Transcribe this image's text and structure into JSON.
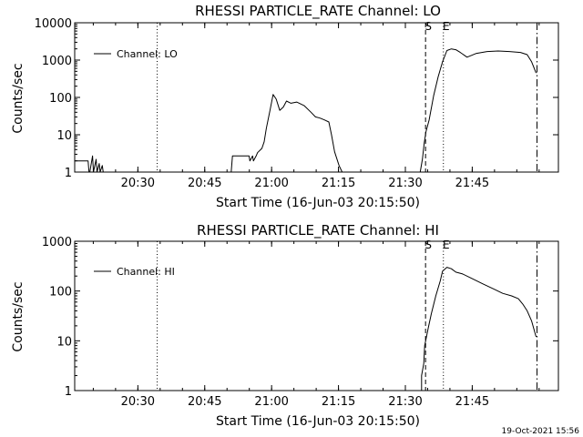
{
  "colors": {
    "background": "#ffffff",
    "foreground": "#000000"
  },
  "footer": {
    "stamp": "19-Oct-2021 15:56"
  },
  "chart_data": [
    {
      "type": "line",
      "title": "RHESSI PARTICLE_RATE Channel: LO",
      "xlabel": "Start Time (16-Jun-03 20:15:50)",
      "ylabel": "Counts/sec",
      "y_scale": "log",
      "x_units": "minutes since 20:15:50",
      "xlim": [
        0,
        108.5
      ],
      "ylim": [
        1,
        10000
      ],
      "x_ticks": [
        {
          "label": "20:30",
          "x": 14.17
        },
        {
          "label": "20:45",
          "x": 29.17
        },
        {
          "label": "21:00",
          "x": 44.17
        },
        {
          "label": "21:15",
          "x": 59.17
        },
        {
          "label": "21:30",
          "x": 74.17
        },
        {
          "label": "21:45",
          "x": 89.17
        }
      ],
      "y_ticks": [
        {
          "label": "1",
          "y": 1
        },
        {
          "label": "10",
          "y": 10
        },
        {
          "label": "100",
          "y": 100
        },
        {
          "label": "1000",
          "y": 1000
        },
        {
          "label": "10000",
          "y": 10000
        }
      ],
      "legend": {
        "position": "top-left",
        "entries": [
          "Channel: LO"
        ]
      },
      "grid": false,
      "markers": [
        {
          "x": 18.5,
          "style": "dotted",
          "label": ""
        },
        {
          "x": 78.7,
          "style": "dashed",
          "label": "S"
        },
        {
          "x": 82.7,
          "style": "dotted",
          "label": "E"
        },
        {
          "x": 103.7,
          "style": "dashdot",
          "label": ""
        }
      ],
      "series": [
        {
          "name": "Channel: LO",
          "x": [
            0,
            3,
            3.2,
            3.4,
            4.0,
            4.2,
            4.8,
            5.0,
            5.5,
            5.7,
            6.2,
            6.4,
            7.0,
            35.1,
            35.4,
            39.1,
            39.3,
            39.9,
            40.1,
            40.7,
            41.0,
            42.0,
            42.5,
            43.0,
            43.8,
            44.5,
            45.2,
            46.0,
            46.8,
            47.5,
            48.5,
            49.8,
            51.5,
            53.0,
            54.0,
            55.0,
            56.0,
            57.0,
            57.6,
            58.3,
            59.3,
            60.0,
            77.5,
            78.0,
            78.4,
            78.8,
            79.5,
            80.5,
            81.5,
            82.5,
            83.5,
            84.5,
            85.5,
            86.5,
            88.0,
            90.0,
            92.5,
            95.0,
            97.5,
            100.0,
            101.5,
            102.5,
            103.5
          ],
          "values": [
            2,
            2,
            1,
            1,
            2.7,
            1,
            2.2,
            1,
            1.7,
            1,
            1.5,
            1,
            1,
            1,
            2.7,
            2.7,
            2,
            2.7,
            2,
            2.7,
            3.3,
            4.3,
            6.5,
            15,
            45,
            120,
            90,
            45,
            55,
            80,
            70,
            75,
            60,
            40,
            30,
            28,
            25,
            22,
            10,
            3.5,
            1.5,
            1,
            1,
            2.2,
            6,
            12,
            25,
            110,
            350,
            900,
            1800,
            2000,
            1900,
            1600,
            1200,
            1500,
            1700,
            1750,
            1700,
            1600,
            1400,
            900,
            450
          ]
        }
      ]
    },
    {
      "type": "line",
      "title": "RHESSI PARTICLE_RATE Channel: HI",
      "xlabel": "Start Time (16-Jun-03 20:15:50)",
      "ylabel": "Counts/sec",
      "y_scale": "log",
      "x_units": "minutes since 20:15:50",
      "xlim": [
        0,
        108.5
      ],
      "ylim": [
        1,
        1000
      ],
      "x_ticks": [
        {
          "label": "20:30",
          "x": 14.17
        },
        {
          "label": "20:45",
          "x": 29.17
        },
        {
          "label": "21:00",
          "x": 44.17
        },
        {
          "label": "21:15",
          "x": 59.17
        },
        {
          "label": "21:30",
          "x": 74.17
        },
        {
          "label": "21:45",
          "x": 89.17
        }
      ],
      "y_ticks": [
        {
          "label": "1",
          "y": 1
        },
        {
          "label": "10",
          "y": 10
        },
        {
          "label": "100",
          "y": 100
        },
        {
          "label": "1000",
          "y": 1000
        }
      ],
      "legend": {
        "position": "top-left",
        "entries": [
          "Channel: HI"
        ]
      },
      "grid": false,
      "markers": [
        {
          "x": 18.5,
          "style": "dotted",
          "label": ""
        },
        {
          "x": 78.7,
          "style": "dashed",
          "label": "S"
        },
        {
          "x": 82.7,
          "style": "dotted",
          "label": "E"
        },
        {
          "x": 103.7,
          "style": "dashdot",
          "label": ""
        }
      ],
      "series": [
        {
          "name": "Channel: HI",
          "x": [
            77.8,
            77.8,
            78.3,
            78.5,
            79.3,
            80.0,
            81.0,
            82.0,
            82.5,
            83.5,
            84.5,
            85.5,
            87.0,
            89.0,
            91.5,
            94.0,
            96.0,
            98.0,
            99.5,
            100.5,
            101.5,
            102.5,
            103.5
          ],
          "values": [
            1,
            2,
            3.5,
            8,
            18,
            35,
            80,
            160,
            250,
            300,
            280,
            240,
            220,
            180,
            140,
            110,
            90,
            80,
            70,
            55,
            40,
            25,
            12
          ]
        }
      ]
    }
  ]
}
